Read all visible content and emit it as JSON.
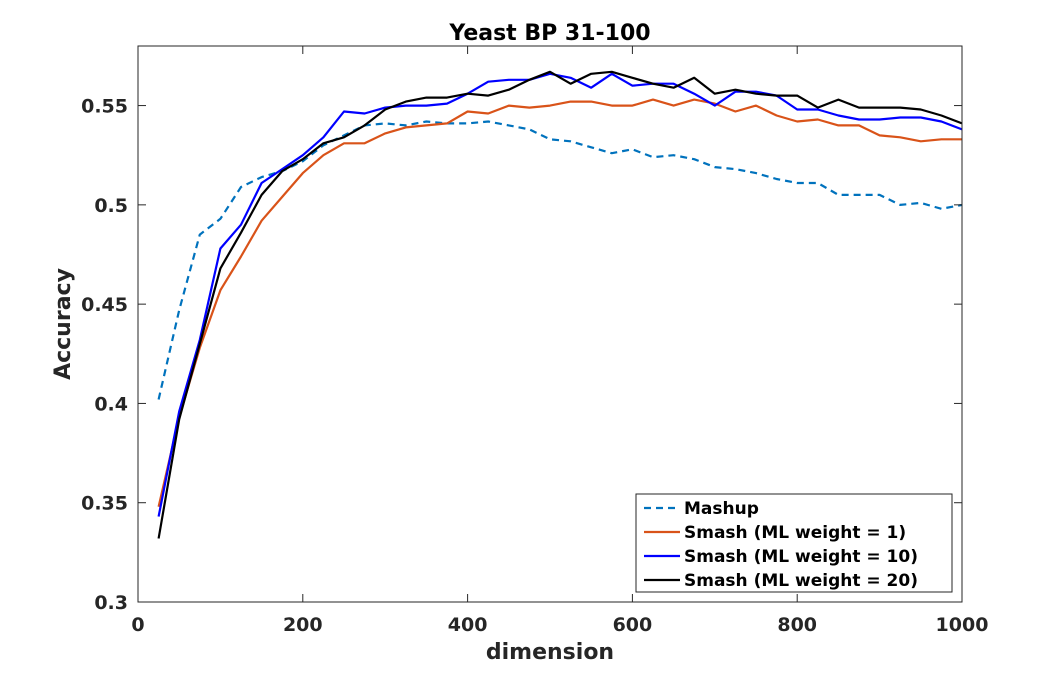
{
  "chart_data": {
    "type": "line",
    "title": "Yeast BP 31-100",
    "xlabel": "dimension",
    "ylabel": "Accuracy",
    "xlim": [
      0,
      1000
    ],
    "ylim": [
      0.3,
      0.58
    ],
    "xticks": [
      0,
      200,
      400,
      600,
      800,
      1000
    ],
    "xtick_labels": [
      "0",
      "200",
      "400",
      "600",
      "800",
      "1000"
    ],
    "yticks": [
      0.3,
      0.35,
      0.4,
      0.45,
      0.5,
      0.55
    ],
    "ytick_labels": [
      "0.3",
      "0.35",
      "0.4",
      "0.45",
      "0.5",
      "0.55"
    ],
    "grid": false,
    "legend_position": "bottom-right",
    "x": [
      25,
      50,
      75,
      100,
      125,
      150,
      175,
      200,
      225,
      250,
      275,
      300,
      325,
      350,
      375,
      400,
      425,
      450,
      475,
      500,
      525,
      550,
      575,
      600,
      625,
      650,
      675,
      700,
      725,
      750,
      775,
      800,
      825,
      850,
      875,
      900,
      925,
      950,
      975,
      1000
    ],
    "series": [
      {
        "name": "Mashup",
        "color": "#0072BD",
        "dash": "dashed",
        "values": [
          0.402,
          0.447,
          0.485,
          0.493,
          0.509,
          0.514,
          0.517,
          0.522,
          0.53,
          0.535,
          0.54,
          0.541,
          0.54,
          0.542,
          0.541,
          0.541,
          0.542,
          0.54,
          0.538,
          0.533,
          0.532,
          0.529,
          0.526,
          0.528,
          0.524,
          0.525,
          0.523,
          0.519,
          0.518,
          0.516,
          0.513,
          0.511,
          0.511,
          0.505,
          0.505,
          0.505,
          0.5,
          0.501,
          0.498,
          0.5
        ]
      },
      {
        "name": "Smash (ML weight = 1)",
        "color": "#D95319",
        "dash": "solid",
        "values": [
          0.348,
          0.393,
          0.428,
          0.457,
          0.474,
          0.492,
          0.504,
          0.516,
          0.525,
          0.531,
          0.531,
          0.536,
          0.539,
          0.54,
          0.541,
          0.547,
          0.546,
          0.55,
          0.549,
          0.55,
          0.552,
          0.552,
          0.55,
          0.55,
          0.553,
          0.55,
          0.553,
          0.551,
          0.547,
          0.55,
          0.545,
          0.542,
          0.543,
          0.54,
          0.54,
          0.535,
          0.534,
          0.532,
          0.533,
          0.533
        ]
      },
      {
        "name": "Smash (ML weight = 10)",
        "color": "#0000FF",
        "dash": "solid",
        "values": [
          0.343,
          0.396,
          0.432,
          0.478,
          0.49,
          0.511,
          0.518,
          0.525,
          0.534,
          0.547,
          0.546,
          0.549,
          0.55,
          0.55,
          0.551,
          0.556,
          0.562,
          0.563,
          0.563,
          0.566,
          0.564,
          0.559,
          0.566,
          0.56,
          0.561,
          0.561,
          0.556,
          0.55,
          0.557,
          0.557,
          0.555,
          0.548,
          0.548,
          0.545,
          0.543,
          0.543,
          0.544,
          0.544,
          0.542,
          0.538
        ]
      },
      {
        "name": "Smash (ML weight = 20)",
        "color": "#000000",
        "dash": "solid",
        "values": [
          0.332,
          0.392,
          0.43,
          0.468,
          0.486,
          0.505,
          0.517,
          0.523,
          0.531,
          0.534,
          0.54,
          0.548,
          0.552,
          0.554,
          0.554,
          0.556,
          0.555,
          0.558,
          0.563,
          0.567,
          0.561,
          0.566,
          0.567,
          0.564,
          0.561,
          0.559,
          0.564,
          0.556,
          0.558,
          0.556,
          0.555,
          0.555,
          0.549,
          0.553,
          0.549,
          0.549,
          0.549,
          0.548,
          0.545,
          0.541
        ]
      }
    ]
  }
}
